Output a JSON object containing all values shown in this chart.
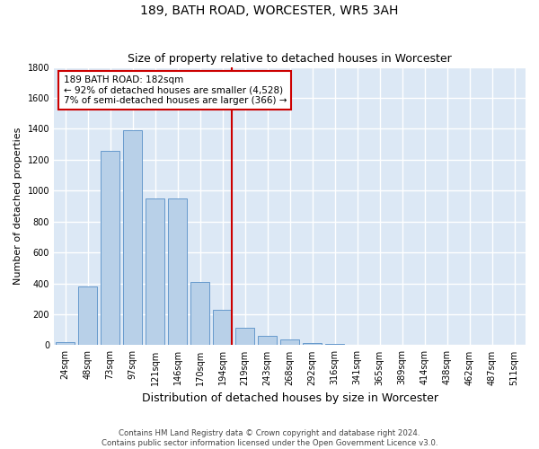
{
  "title": "189, BATH ROAD, WORCESTER, WR5 3AH",
  "subtitle": "Size of property relative to detached houses in Worcester",
  "xlabel": "Distribution of detached houses by size in Worcester",
  "ylabel": "Number of detached properties",
  "categories": [
    "24sqm",
    "48sqm",
    "73sqm",
    "97sqm",
    "121sqm",
    "146sqm",
    "170sqm",
    "194sqm",
    "219sqm",
    "243sqm",
    "268sqm",
    "292sqm",
    "316sqm",
    "341sqm",
    "365sqm",
    "389sqm",
    "414sqm",
    "438sqm",
    "462sqm",
    "487sqm",
    "511sqm"
  ],
  "values": [
    20,
    380,
    1260,
    1390,
    950,
    950,
    410,
    230,
    110,
    60,
    35,
    15,
    10,
    5,
    3,
    2,
    1,
    1,
    1,
    1,
    1
  ],
  "bar_color": "#b8d0e8",
  "bar_edge_color": "#6699cc",
  "vline_color": "#cc0000",
  "annotation_text": "189 BATH ROAD: 182sqm\n← 92% of detached houses are smaller (4,528)\n7% of semi-detached houses are larger (366) →",
  "annotation_box_color": "#ffffff",
  "annotation_box_edge": "#cc0000",
  "ylim": [
    0,
    1800
  ],
  "yticks": [
    0,
    200,
    400,
    600,
    800,
    1000,
    1200,
    1400,
    1600,
    1800
  ],
  "footer": "Contains HM Land Registry data © Crown copyright and database right 2024.\nContains public sector information licensed under the Open Government Licence v3.0.",
  "bg_color": "#dce8f5",
  "grid_color": "#ffffff",
  "title_fontsize": 10,
  "subtitle_fontsize": 9,
  "tick_fontsize": 7,
  "ylabel_fontsize": 8,
  "xlabel_fontsize": 9,
  "annotation_fontsize": 7.5
}
